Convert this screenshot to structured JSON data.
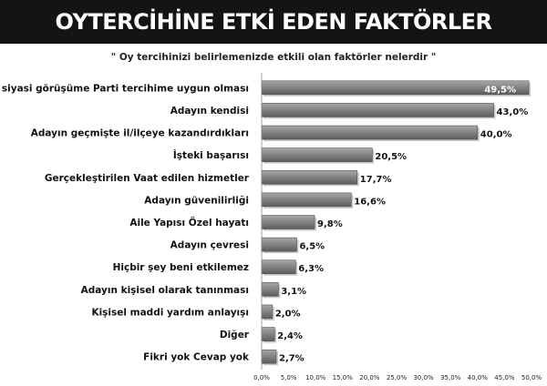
{
  "header": {
    "title": "OYTERCİHİNE ETKİ EDEN FAKTÖRLER",
    "subtitle": "\" Oy tercihinizi belirlemenizde etkili olan faktörler nelerdir \""
  },
  "chart_data": {
    "type": "bar",
    "orientation": "horizontal",
    "title": "",
    "xlabel": "",
    "ylabel": "",
    "xlim": [
      0,
      50
    ],
    "grid": false,
    "legend": "none",
    "bar_color": "#808080",
    "categories": [
      "Adayın siyasi görüşüme Parti tercihime uygun olması",
      "Adayın kendisi",
      "Adayın geçmişte il/ilçeye kazandırdıkları",
      "İşteki başarısı",
      "Gerçekleştirilen  Vaat edilen hizmetler",
      "Adayın güvenilirliği",
      "Aile Yapısı Özel hayatı",
      "Adayın çevresi",
      "Hiçbir şey beni etkilemez",
      "Adayın kişisel olarak tanınması",
      "Kişisel maddi yardım anlayışı",
      "Diğer",
      "Fikri yok Cevap yok"
    ],
    "values": [
      49.5,
      43.0,
      40.0,
      20.5,
      17.7,
      16.6,
      9.8,
      6.5,
      6.3,
      3.1,
      2.0,
      2.4,
      2.7
    ],
    "value_labels": [
      "49,5%",
      "43,0%",
      "40,0%",
      "20,5%",
      "17,7%",
      "16,6%",
      "9,8%",
      "6,5%",
      "6,3%",
      "3,1%",
      "2,0%",
      "2,4%",
      "2,7%"
    ],
    "ticks": [
      0,
      5,
      10,
      15,
      20,
      25,
      30,
      35,
      40,
      45,
      50
    ],
    "tick_labels": [
      "0,0%",
      "5,0%",
      "10,0%",
      "15,0%",
      "20,0%",
      "25,0%",
      "30,0%",
      "35,0%",
      "40,0%",
      "45,0%",
      "50,0%"
    ]
  }
}
